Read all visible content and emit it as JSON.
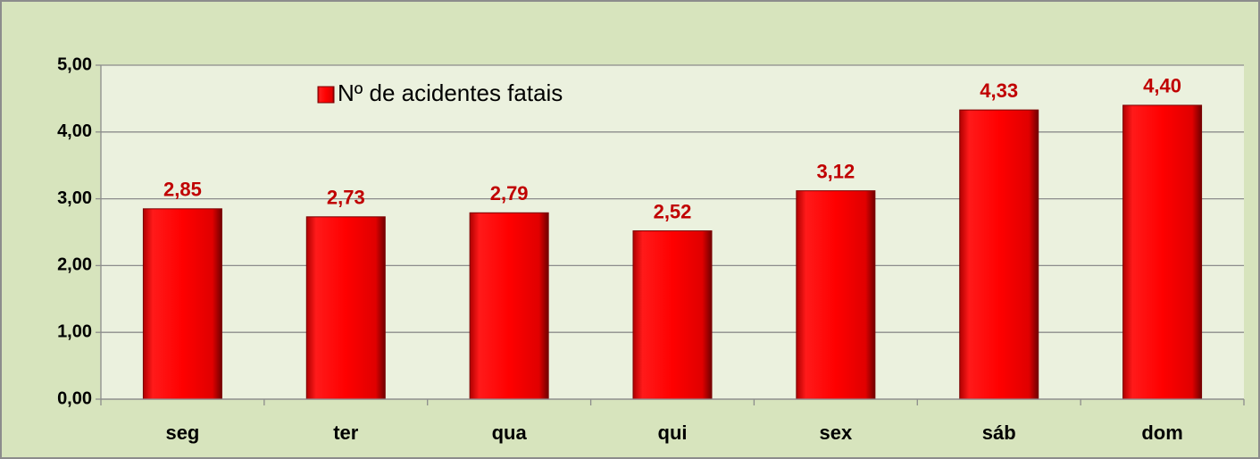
{
  "chart_data": {
    "type": "bar",
    "categories": [
      "seg",
      "ter",
      "qua",
      "qui",
      "sex",
      "sáb",
      "dom"
    ],
    "series": [
      {
        "name": "Nº de acidentes fatais",
        "color": "#ff0000",
        "values": [
          2.85,
          2.73,
          2.79,
          2.52,
          3.12,
          4.33,
          4.4
        ],
        "value_labels": [
          "2,85",
          "2,73",
          "2,79",
          "2,52",
          "3,12",
          "4,33",
          "4,40"
        ]
      }
    ],
    "ylim": [
      0,
      5
    ],
    "yticks": [
      {
        "value": 0,
        "label": "0,00"
      },
      {
        "value": 1,
        "label": "1,00"
      },
      {
        "value": 2,
        "label": "2,00"
      },
      {
        "value": 3,
        "label": "3,00"
      },
      {
        "value": 4,
        "label": "4,00"
      },
      {
        "value": 5,
        "label": "5,00"
      }
    ],
    "grid": true,
    "legend": "top-left"
  }
}
